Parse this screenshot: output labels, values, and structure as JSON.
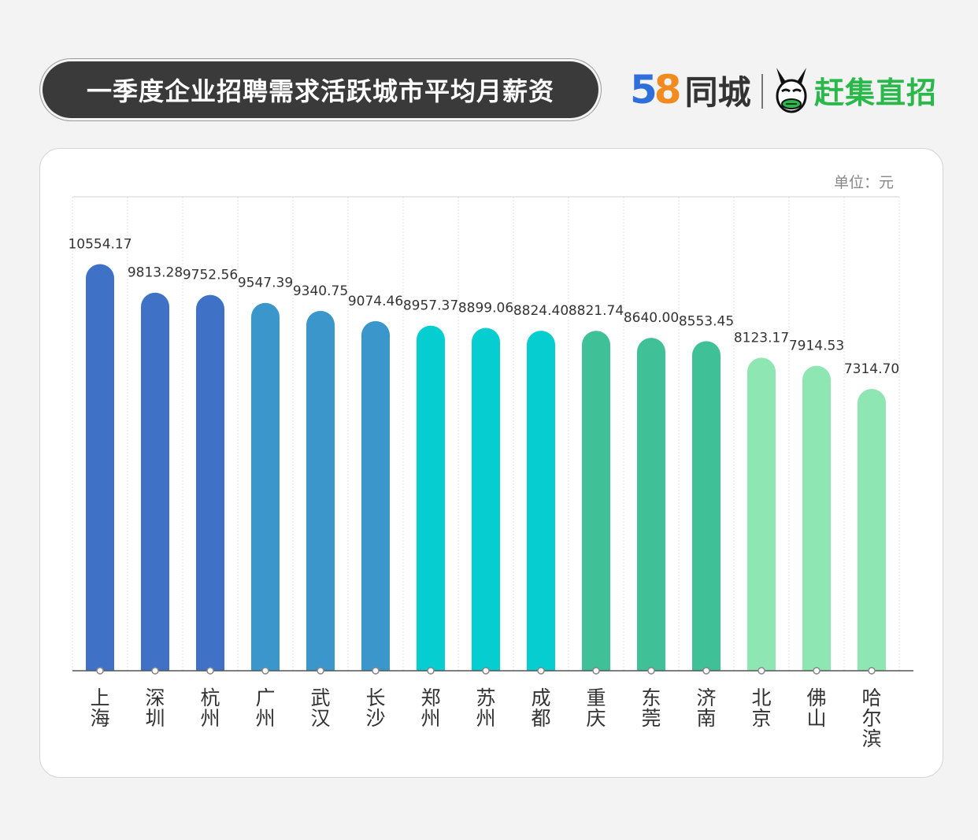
{
  "header": {
    "title": "一季度企业招聘需求活跃城市平均月薪资",
    "brand_58_num5": "5",
    "brand_58_num8": "8",
    "brand_58_text": "同城",
    "brand_ganji_text": "赶集直招"
  },
  "chart_data": {
    "type": "bar",
    "title": "一季度企业招聘需求活跃城市平均月薪资",
    "unit_label": "单位：元",
    "categories": [
      "上海",
      "深圳",
      "杭州",
      "广州",
      "武汉",
      "长沙",
      "郑州",
      "苏州",
      "成都",
      "重庆",
      "东莞",
      "济南",
      "北京",
      "佛山",
      "哈尔滨"
    ],
    "values": [
      10554.17,
      9813.28,
      9752.56,
      9547.39,
      9340.75,
      9074.46,
      8957.37,
      8899.06,
      8824.4,
      8821.74,
      8640.0,
      8553.45,
      8123.17,
      7914.53,
      7314.7
    ],
    "value_labels": [
      "10554.17",
      "9813.28",
      "9752.56",
      "9547.39",
      "9340.75",
      "9074.46",
      "8957.37",
      "8899.06",
      "8824.40",
      "8821.74",
      "8640.00",
      "8553.45",
      "8123.17",
      "7914.53",
      "7314.70"
    ],
    "colors": [
      "#3f72c6",
      "#3f72c6",
      "#3f72c6",
      "#3a96cb",
      "#3a96cb",
      "#3a96cb",
      "#05cdd0",
      "#05cdd0",
      "#05cdd0",
      "#3fc096",
      "#3fc096",
      "#3fc096",
      "#8ee6b2",
      "#8ee6b2",
      "#8ee6b2"
    ],
    "ylim": [
      0,
      12300
    ],
    "grid": "vertical"
  }
}
